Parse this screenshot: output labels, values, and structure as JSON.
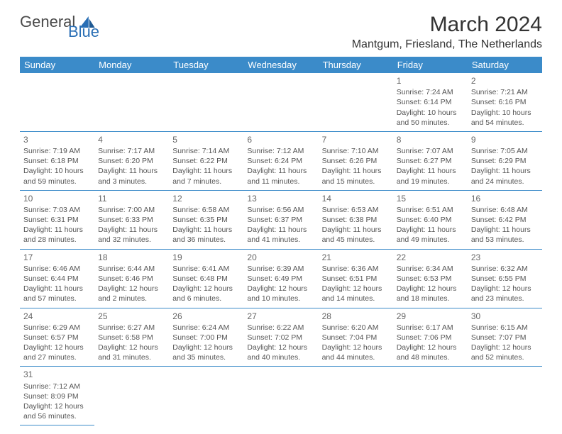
{
  "brand": {
    "part1": "General",
    "part2": "Blue"
  },
  "title": "March 2024",
  "subtitle": "Mantgum, Friesland, The Netherlands",
  "colors": {
    "header_bg": "#3b8bc9",
    "header_fg": "#ffffff",
    "border": "#3b8bc9",
    "brand_accent": "#2a6fb5",
    "text": "#555555"
  },
  "weekdays": [
    "Sunday",
    "Monday",
    "Tuesday",
    "Wednesday",
    "Thursday",
    "Friday",
    "Saturday"
  ],
  "grid": [
    [
      null,
      null,
      null,
      null,
      null,
      {
        "n": "1",
        "sr": "Sunrise: 7:24 AM",
        "ss": "Sunset: 6:14 PM",
        "d1": "Daylight: 10 hours",
        "d2": "and 50 minutes."
      },
      {
        "n": "2",
        "sr": "Sunrise: 7:21 AM",
        "ss": "Sunset: 6:16 PM",
        "d1": "Daylight: 10 hours",
        "d2": "and 54 minutes."
      }
    ],
    [
      {
        "n": "3",
        "sr": "Sunrise: 7:19 AM",
        "ss": "Sunset: 6:18 PM",
        "d1": "Daylight: 10 hours",
        "d2": "and 59 minutes."
      },
      {
        "n": "4",
        "sr": "Sunrise: 7:17 AM",
        "ss": "Sunset: 6:20 PM",
        "d1": "Daylight: 11 hours",
        "d2": "and 3 minutes."
      },
      {
        "n": "5",
        "sr": "Sunrise: 7:14 AM",
        "ss": "Sunset: 6:22 PM",
        "d1": "Daylight: 11 hours",
        "d2": "and 7 minutes."
      },
      {
        "n": "6",
        "sr": "Sunrise: 7:12 AM",
        "ss": "Sunset: 6:24 PM",
        "d1": "Daylight: 11 hours",
        "d2": "and 11 minutes."
      },
      {
        "n": "7",
        "sr": "Sunrise: 7:10 AM",
        "ss": "Sunset: 6:26 PM",
        "d1": "Daylight: 11 hours",
        "d2": "and 15 minutes."
      },
      {
        "n": "8",
        "sr": "Sunrise: 7:07 AM",
        "ss": "Sunset: 6:27 PM",
        "d1": "Daylight: 11 hours",
        "d2": "and 19 minutes."
      },
      {
        "n": "9",
        "sr": "Sunrise: 7:05 AM",
        "ss": "Sunset: 6:29 PM",
        "d1": "Daylight: 11 hours",
        "d2": "and 24 minutes."
      }
    ],
    [
      {
        "n": "10",
        "sr": "Sunrise: 7:03 AM",
        "ss": "Sunset: 6:31 PM",
        "d1": "Daylight: 11 hours",
        "d2": "and 28 minutes."
      },
      {
        "n": "11",
        "sr": "Sunrise: 7:00 AM",
        "ss": "Sunset: 6:33 PM",
        "d1": "Daylight: 11 hours",
        "d2": "and 32 minutes."
      },
      {
        "n": "12",
        "sr": "Sunrise: 6:58 AM",
        "ss": "Sunset: 6:35 PM",
        "d1": "Daylight: 11 hours",
        "d2": "and 36 minutes."
      },
      {
        "n": "13",
        "sr": "Sunrise: 6:56 AM",
        "ss": "Sunset: 6:37 PM",
        "d1": "Daylight: 11 hours",
        "d2": "and 41 minutes."
      },
      {
        "n": "14",
        "sr": "Sunrise: 6:53 AM",
        "ss": "Sunset: 6:38 PM",
        "d1": "Daylight: 11 hours",
        "d2": "and 45 minutes."
      },
      {
        "n": "15",
        "sr": "Sunrise: 6:51 AM",
        "ss": "Sunset: 6:40 PM",
        "d1": "Daylight: 11 hours",
        "d2": "and 49 minutes."
      },
      {
        "n": "16",
        "sr": "Sunrise: 6:48 AM",
        "ss": "Sunset: 6:42 PM",
        "d1": "Daylight: 11 hours",
        "d2": "and 53 minutes."
      }
    ],
    [
      {
        "n": "17",
        "sr": "Sunrise: 6:46 AM",
        "ss": "Sunset: 6:44 PM",
        "d1": "Daylight: 11 hours",
        "d2": "and 57 minutes."
      },
      {
        "n": "18",
        "sr": "Sunrise: 6:44 AM",
        "ss": "Sunset: 6:46 PM",
        "d1": "Daylight: 12 hours",
        "d2": "and 2 minutes."
      },
      {
        "n": "19",
        "sr": "Sunrise: 6:41 AM",
        "ss": "Sunset: 6:48 PM",
        "d1": "Daylight: 12 hours",
        "d2": "and 6 minutes."
      },
      {
        "n": "20",
        "sr": "Sunrise: 6:39 AM",
        "ss": "Sunset: 6:49 PM",
        "d1": "Daylight: 12 hours",
        "d2": "and 10 minutes."
      },
      {
        "n": "21",
        "sr": "Sunrise: 6:36 AM",
        "ss": "Sunset: 6:51 PM",
        "d1": "Daylight: 12 hours",
        "d2": "and 14 minutes."
      },
      {
        "n": "22",
        "sr": "Sunrise: 6:34 AM",
        "ss": "Sunset: 6:53 PM",
        "d1": "Daylight: 12 hours",
        "d2": "and 18 minutes."
      },
      {
        "n": "23",
        "sr": "Sunrise: 6:32 AM",
        "ss": "Sunset: 6:55 PM",
        "d1": "Daylight: 12 hours",
        "d2": "and 23 minutes."
      }
    ],
    [
      {
        "n": "24",
        "sr": "Sunrise: 6:29 AM",
        "ss": "Sunset: 6:57 PM",
        "d1": "Daylight: 12 hours",
        "d2": "and 27 minutes."
      },
      {
        "n": "25",
        "sr": "Sunrise: 6:27 AM",
        "ss": "Sunset: 6:58 PM",
        "d1": "Daylight: 12 hours",
        "d2": "and 31 minutes."
      },
      {
        "n": "26",
        "sr": "Sunrise: 6:24 AM",
        "ss": "Sunset: 7:00 PM",
        "d1": "Daylight: 12 hours",
        "d2": "and 35 minutes."
      },
      {
        "n": "27",
        "sr": "Sunrise: 6:22 AM",
        "ss": "Sunset: 7:02 PM",
        "d1": "Daylight: 12 hours",
        "d2": "and 40 minutes."
      },
      {
        "n": "28",
        "sr": "Sunrise: 6:20 AM",
        "ss": "Sunset: 7:04 PM",
        "d1": "Daylight: 12 hours",
        "d2": "and 44 minutes."
      },
      {
        "n": "29",
        "sr": "Sunrise: 6:17 AM",
        "ss": "Sunset: 7:06 PM",
        "d1": "Daylight: 12 hours",
        "d2": "and 48 minutes."
      },
      {
        "n": "30",
        "sr": "Sunrise: 6:15 AM",
        "ss": "Sunset: 7:07 PM",
        "d1": "Daylight: 12 hours",
        "d2": "and 52 minutes."
      }
    ],
    [
      {
        "n": "31",
        "sr": "Sunrise: 7:12 AM",
        "ss": "Sunset: 8:09 PM",
        "d1": "Daylight: 12 hours",
        "d2": "and 56 minutes."
      },
      null,
      null,
      null,
      null,
      null,
      null
    ]
  ]
}
